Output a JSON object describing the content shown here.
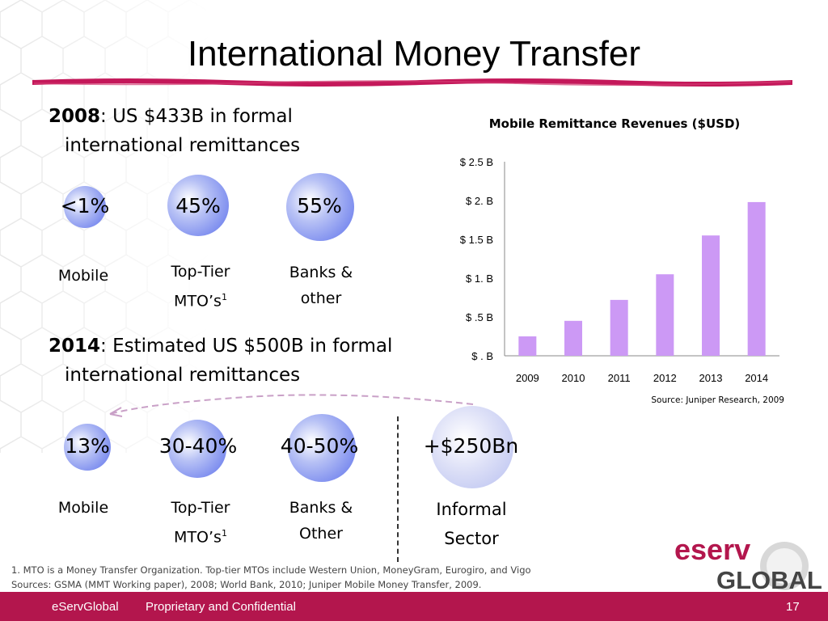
{
  "title": "International Money Transfer",
  "section2008": {
    "year": "2008",
    "text": ": US $433B in formal",
    "line2": "international remittances"
  },
  "section2014": {
    "year": "2014",
    "text": ": Estimated US $500B in formal",
    "line2": "international remittances"
  },
  "row2008": [
    {
      "value": "<1%",
      "label1": "Mobile",
      "label2": "",
      "sup": ""
    },
    {
      "value": "45%",
      "label1": "Top-Tier",
      "label2": "MTO’s",
      "sup": "1"
    },
    {
      "value": "55%",
      "label1": "Banks &",
      "label2": "other",
      "sup": ""
    }
  ],
  "row2014": [
    {
      "value": "13%",
      "label1": "Mobile",
      "label2": "",
      "sup": ""
    },
    {
      "value": "30-40%",
      "label1": "Top-Tier",
      "label2": "MTO’s",
      "sup": "1"
    },
    {
      "value": "40-50%",
      "label1": "Banks &",
      "label2": "Other",
      "sup": ""
    },
    {
      "value": "+$250Bn",
      "label1": "Informal",
      "label2": "Sector",
      "sup": ""
    }
  ],
  "footnotes": {
    "note1": "1.  MTO is a Money Transfer Organization. Top-tier MTOs include Western Union, MoneyGram, Eurogiro, and Vigo",
    "sources": "Sources: GSMA (MMT Working paper), 2008; World Bank, 2010; Juniper Mobile Money Transfer, 2009."
  },
  "footer": {
    "company": "eServGlobal",
    "text": "Proprietary and Confidential",
    "page": "17"
  },
  "logo": {
    "line1": "eserv",
    "line2": "GLOBAL"
  },
  "colors": {
    "accent": "#b3164d",
    "bar": "#cc99f5",
    "circle": "#8090ee"
  },
  "chart_data": {
    "type": "bar",
    "title": "Mobile Remittance Revenues ($USD)",
    "categories": [
      "2009",
      "2010",
      "2011",
      "2012",
      "2013",
      "2014"
    ],
    "values": [
      0.25,
      0.45,
      0.72,
      1.05,
      1.55,
      1.98
    ],
    "ylim": [
      0,
      2.5
    ],
    "yticks": [
      {
        "value": 0,
        "label": "$ . B"
      },
      {
        "value": 0.5,
        "label": "$ .5 B"
      },
      {
        "value": 1,
        "label": "$ 1. B"
      },
      {
        "value": 1.5,
        "label": "$ 1.5 B"
      },
      {
        "value": 2,
        "label": "$ 2. B"
      },
      {
        "value": 2.5,
        "label": "$ 2.5 B"
      }
    ],
    "xlabel": "",
    "ylabel": "",
    "grid": false,
    "source": "Source: Juniper Research, 2009"
  }
}
